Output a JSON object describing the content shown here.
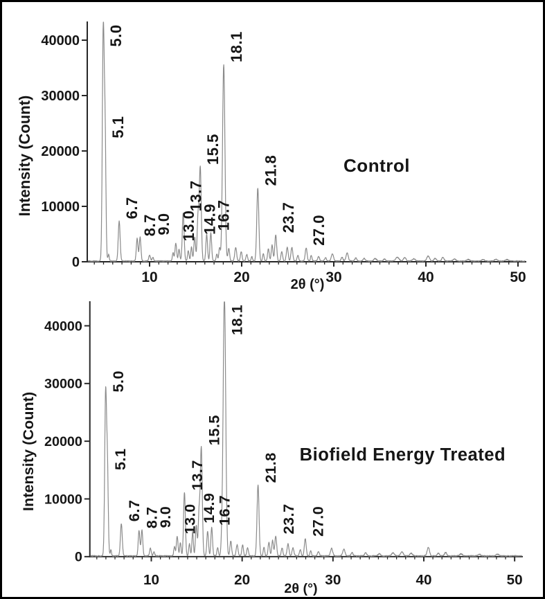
{
  "figure": {
    "background_color": "#ffffff",
    "border_color": "#000000",
    "trace_color": "#8a8a8a",
    "axis_color": "#262626",
    "text_color": "#161616"
  },
  "chart_data": [
    {
      "type": "line",
      "title": "Control",
      "xlabel": "2θ (°)",
      "ylabel": "Intensity (Count)",
      "xlim": [
        3.3,
        50.8
      ],
      "ylim": [
        0,
        43400
      ],
      "x_ticks": [
        10,
        20,
        30,
        40,
        50
      ],
      "y_ticks": [
        0,
        10000,
        20000,
        30000,
        40000
      ],
      "grid": false,
      "legend_position": "none",
      "peaks": [
        {
          "label": "5.0",
          "two_theta": 4.97,
          "intensity": 41500,
          "sigma": 0.1
        },
        {
          "label": "5.1",
          "two_theta": 5.17,
          "intensity": 21800,
          "sigma": 0.09
        },
        {
          "label": "6.7",
          "two_theta": 6.7,
          "intensity": 7200,
          "sigma": 0.1
        },
        {
          "label": "8.7",
          "two_theta": 8.65,
          "intensity": 4100,
          "sigma": 0.09
        },
        {
          "label": "9.0",
          "two_theta": 8.97,
          "intensity": 4300,
          "sigma": 0.09
        },
        {
          "label": "13.0",
          "two_theta": 12.85,
          "intensity": 3200,
          "sigma": 0.09
        },
        {
          "label": "13.7",
          "two_theta": 13.65,
          "intensity": 8600,
          "sigma": 0.1
        },
        {
          "label": "14.9",
          "two_theta": 14.9,
          "intensity": 4400,
          "sigma": 0.09
        },
        {
          "label": "15.5",
          "two_theta": 15.5,
          "intensity": 17000,
          "sigma": 0.11
        },
        {
          "label": "16.7",
          "two_theta": 16.65,
          "intensity": 5100,
          "sigma": 0.09
        },
        {
          "label": "18.1",
          "two_theta": 18.05,
          "intensity": 35500,
          "sigma": 0.13
        },
        {
          "label": "21.8",
          "two_theta": 21.75,
          "intensity": 13200,
          "sigma": 0.11
        },
        {
          "label": "23.7",
          "two_theta": 23.7,
          "intensity": 4700,
          "sigma": 0.1
        },
        {
          "label": "27.0",
          "two_theta": 27.0,
          "intensity": 2400,
          "sigma": 0.1
        }
      ],
      "minor_peaks": [
        [
          5.55,
          1200,
          0.07
        ],
        [
          10.0,
          1100,
          0.09
        ],
        [
          10.35,
          700,
          0.08
        ],
        [
          12.55,
          1500,
          0.08
        ],
        [
          13.2,
          2100,
          0.08
        ],
        [
          14.2,
          1900,
          0.08
        ],
        [
          14.55,
          2600,
          0.08
        ],
        [
          15.25,
          7500,
          0.09
        ],
        [
          16.2,
          4800,
          0.09
        ],
        [
          17.3,
          1300,
          0.08
        ],
        [
          17.6,
          2400,
          0.08
        ],
        [
          18.6,
          2300,
          0.09
        ],
        [
          19.35,
          2500,
          0.1
        ],
        [
          19.95,
          1700,
          0.09
        ],
        [
          20.55,
          1200,
          0.09
        ],
        [
          21.1,
          800,
          0.08
        ],
        [
          22.35,
          1300,
          0.08
        ],
        [
          22.9,
          2200,
          0.09
        ],
        [
          23.3,
          2900,
          0.09
        ],
        [
          24.35,
          1700,
          0.09
        ],
        [
          24.95,
          2500,
          0.1
        ],
        [
          25.45,
          2500,
          0.1
        ],
        [
          26.1,
          1000,
          0.09
        ],
        [
          27.55,
          1000,
          0.08
        ],
        [
          28.35,
          800,
          0.1
        ],
        [
          29.1,
          600,
          0.1
        ],
        [
          29.85,
          1300,
          0.12
        ],
        [
          30.9,
          700,
          0.1
        ],
        [
          31.45,
          1500,
          0.12
        ],
        [
          32.4,
          600,
          0.1
        ],
        [
          33.3,
          500,
          0.12
        ],
        [
          34.5,
          450,
          0.15
        ],
        [
          35.5,
          350,
          0.12
        ],
        [
          36.9,
          700,
          0.18
        ],
        [
          37.7,
          600,
          0.15
        ],
        [
          38.7,
          400,
          0.15
        ],
        [
          40.25,
          900,
          0.15
        ],
        [
          41.0,
          500,
          0.12
        ],
        [
          41.85,
          700,
          0.12
        ],
        [
          43.1,
          350,
          0.15
        ],
        [
          44.6,
          300,
          0.15
        ],
        [
          46.2,
          280,
          0.15
        ],
        [
          47.6,
          320,
          0.15
        ],
        [
          48.8,
          250,
          0.15
        ]
      ]
    },
    {
      "type": "line",
      "title": "Biofield Energy Treated",
      "xlabel": "2θ (°)",
      "ylabel": "Intensity (Count)",
      "xlim": [
        3.3,
        50.8
      ],
      "ylim": [
        0,
        44300
      ],
      "x_ticks": [
        10,
        20,
        30,
        40,
        50
      ],
      "y_ticks": [
        0,
        10000,
        20000,
        30000,
        40000
      ],
      "grid": false,
      "legend_position": "none",
      "peaks": [
        {
          "label": "5.0",
          "two_theta": 4.97,
          "intensity": 28000,
          "sigma": 0.1
        },
        {
          "label": "5.1",
          "two_theta": 5.17,
          "intensity": 14500,
          "sigma": 0.09
        },
        {
          "label": "6.7",
          "two_theta": 6.7,
          "intensity": 5600,
          "sigma": 0.1
        },
        {
          "label": "8.7",
          "two_theta": 8.65,
          "intensity": 4400,
          "sigma": 0.09
        },
        {
          "label": "9.0",
          "two_theta": 8.97,
          "intensity": 4500,
          "sigma": 0.09
        },
        {
          "label": "13.0",
          "two_theta": 12.85,
          "intensity": 3400,
          "sigma": 0.09
        },
        {
          "label": "13.7",
          "two_theta": 13.65,
          "intensity": 11000,
          "sigma": 0.1
        },
        {
          "label": "14.9",
          "two_theta": 14.95,
          "intensity": 5300,
          "sigma": 0.09
        },
        {
          "label": "15.5",
          "two_theta": 15.5,
          "intensity": 18800,
          "sigma": 0.11
        },
        {
          "label": "16.7",
          "two_theta": 16.65,
          "intensity": 4900,
          "sigma": 0.09
        },
        {
          "label": "18.1",
          "two_theta": 18.05,
          "intensity": 45500,
          "sigma": 0.14,
          "clipped": true
        },
        {
          "label": "21.8",
          "two_theta": 21.75,
          "intensity": 12300,
          "sigma": 0.11
        },
        {
          "label": "23.7",
          "two_theta": 23.7,
          "intensity": 3400,
          "sigma": 0.1
        },
        {
          "label": "27.0",
          "two_theta": 26.95,
          "intensity": 3000,
          "sigma": 0.1
        }
      ],
      "minor_peaks": [
        [
          5.55,
          1000,
          0.07
        ],
        [
          9.9,
          1300,
          0.09
        ],
        [
          10.3,
          700,
          0.08
        ],
        [
          12.55,
          1600,
          0.08
        ],
        [
          13.2,
          2300,
          0.08
        ],
        [
          14.2,
          2100,
          0.08
        ],
        [
          14.55,
          4200,
          0.08
        ],
        [
          15.25,
          7000,
          0.09
        ],
        [
          16.2,
          4300,
          0.09
        ],
        [
          17.3,
          1400,
          0.08
        ],
        [
          17.75,
          1800,
          0.08
        ],
        [
          18.75,
          2600,
          0.09
        ],
        [
          19.45,
          1900,
          0.1
        ],
        [
          20.05,
          1900,
          0.09
        ],
        [
          20.6,
          1400,
          0.09
        ],
        [
          22.4,
          1500,
          0.08
        ],
        [
          22.95,
          2400,
          0.09
        ],
        [
          23.35,
          2700,
          0.09
        ],
        [
          24.4,
          1400,
          0.09
        ],
        [
          25.05,
          2100,
          0.1
        ],
        [
          25.6,
          1400,
          0.1
        ],
        [
          26.4,
          1100,
          0.09
        ],
        [
          27.55,
          900,
          0.08
        ],
        [
          28.4,
          700,
          0.1
        ],
        [
          29.85,
          1300,
          0.12
        ],
        [
          31.2,
          1200,
          0.12
        ],
        [
          32.1,
          600,
          0.1
        ],
        [
          33.6,
          500,
          0.12
        ],
        [
          35.1,
          400,
          0.12
        ],
        [
          36.6,
          500,
          0.15
        ],
        [
          37.6,
          700,
          0.15
        ],
        [
          38.6,
          450,
          0.15
        ],
        [
          40.5,
          1500,
          0.13
        ],
        [
          41.6,
          450,
          0.12
        ],
        [
          42.4,
          600,
          0.12
        ],
        [
          44.1,
          350,
          0.15
        ],
        [
          46.1,
          300,
          0.15
        ],
        [
          48.1,
          300,
          0.15
        ]
      ]
    }
  ]
}
